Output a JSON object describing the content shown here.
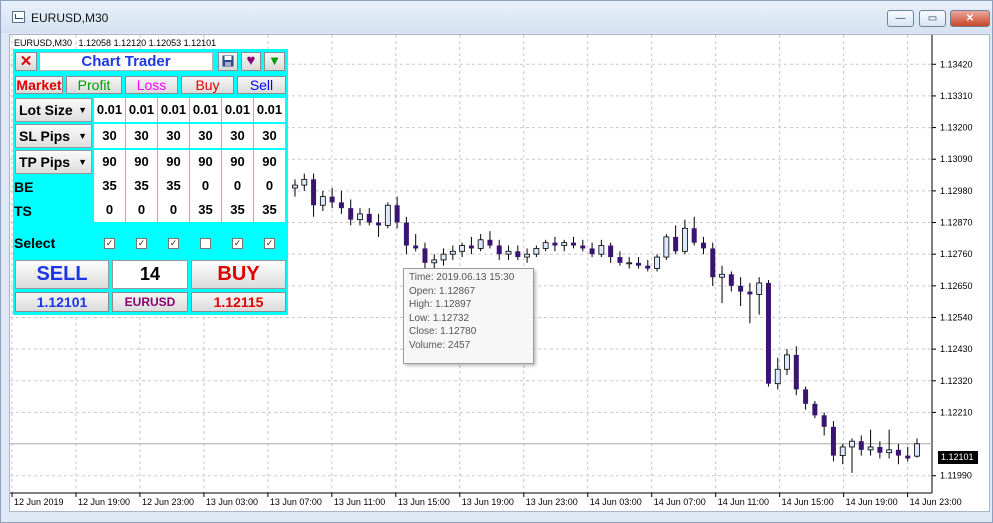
{
  "window": {
    "title": "EURUSD,M30",
    "minimize_icon": "minimize-icon",
    "restore_icon": "restore-icon",
    "close_icon": "close-icon"
  },
  "chart_header": {
    "symbol": "EURUSD,M30",
    "ohlc": "1.12058 1.12120 1.12053 1.12101"
  },
  "panel": {
    "close_label": "✕",
    "title": "Chart Trader",
    "save_icon": "floppy-disk-icon",
    "heart_icon": "heart-icon",
    "minimize_icon": "triangle-down-icon",
    "tabs": [
      {
        "label": "Market",
        "color": "#e00000"
      },
      {
        "label": "Profit",
        "color": "#00a000"
      },
      {
        "label": "Loss",
        "color": "#ff00ff"
      },
      {
        "label": "Buy",
        "color": "#e00000"
      },
      {
        "label": "Sell",
        "color": "#0000ff"
      }
    ],
    "rows": [
      {
        "label": "Lot Size",
        "dropdown": true,
        "values": [
          "0.01",
          "0.01",
          "0.01",
          "0.01",
          "0.01",
          "0.01"
        ]
      },
      {
        "label": "SL Pips",
        "dropdown": true,
        "values": [
          "30",
          "30",
          "30",
          "30",
          "30",
          "30"
        ]
      },
      {
        "label": "TP Pips",
        "dropdown": true,
        "values": [
          "90",
          "90",
          "90",
          "90",
          "90",
          "90"
        ]
      },
      {
        "label": "BE",
        "dropdown": false,
        "values": [
          "35",
          "35",
          "35",
          "0",
          "0",
          "0"
        ]
      },
      {
        "label": "TS",
        "dropdown": false,
        "values": [
          "0",
          "0",
          "0",
          "35",
          "35",
          "35"
        ]
      }
    ],
    "select_label": "Select",
    "select_checked": [
      true,
      true,
      true,
      false,
      true,
      true
    ],
    "sell_label": "SELL",
    "count": "14",
    "buy_label": "BUY",
    "bid": "1.12101",
    "symbol": "EURUSD",
    "ask": "1.12115"
  },
  "tooltip": {
    "time": "Time: 2019.06.13 15:30",
    "open": "Open: 1.12867",
    "high": "High: 1.12897",
    "low": "Low:  1.12732",
    "close": "Close: 1.12780",
    "volume": "Volume: 2457"
  },
  "current_price": "1.12101",
  "chart_data": {
    "type": "candlestick",
    "symbol": "EURUSD",
    "timeframe": "M30",
    "ylim": [
      1.1193,
      1.1348
    ],
    "y_ticks": [
      "1.13420",
      "1.13310",
      "1.13200",
      "1.13090",
      "1.12980",
      "1.12870",
      "1.12760",
      "1.12650",
      "1.12540",
      "1.12430",
      "1.12320",
      "1.12210",
      "1.11990"
    ],
    "x_ticks": [
      "12 Jun 2019",
      "12 Jun 19:00",
      "12 Jun 23:00",
      "13 Jun 03:00",
      "13 Jun 07:00",
      "13 Jun 11:00",
      "13 Jun 15:00",
      "13 Jun 19:00",
      "13 Jun 23:00",
      "14 Jun 03:00",
      "14 Jun 07:00",
      "14 Jun 11:00",
      "14 Jun 15:00",
      "14 Jun 19:00",
      "14 Jun 23:00"
    ],
    "grid": true,
    "bull_color": "#dce9ff",
    "bear_color": "#3a1473",
    "candles": [
      [
        1.1299,
        1.1302,
        1.1296,
        1.13
      ],
      [
        1.13,
        1.1304,
        1.1298,
        1.1302
      ],
      [
        1.1302,
        1.1304,
        1.1289,
        1.1293
      ],
      [
        1.1293,
        1.1298,
        1.1291,
        1.1296
      ],
      [
        1.1296,
        1.1299,
        1.1292,
        1.1294
      ],
      [
        1.1294,
        1.1298,
        1.129,
        1.1292
      ],
      [
        1.1292,
        1.1295,
        1.1286,
        1.1288
      ],
      [
        1.1288,
        1.1292,
        1.1286,
        1.129
      ],
      [
        1.129,
        1.1292,
        1.1286,
        1.1287
      ],
      [
        1.1287,
        1.129,
        1.1282,
        1.1286
      ],
      [
        1.1286,
        1.1294,
        1.1285,
        1.1293
      ],
      [
        1.1293,
        1.1296,
        1.1285,
        1.1287
      ],
      [
        1.1287,
        1.1289,
        1.1276,
        1.1279
      ],
      [
        1.1279,
        1.1283,
        1.1277,
        1.1278
      ],
      [
        1.1278,
        1.128,
        1.127,
        1.1273
      ],
      [
        1.1273,
        1.1276,
        1.127,
        1.1274
      ],
      [
        1.1274,
        1.1278,
        1.1272,
        1.1276
      ],
      [
        1.1276,
        1.1279,
        1.1274,
        1.1277
      ],
      [
        1.1277,
        1.128,
        1.1275,
        1.1279
      ],
      [
        1.1279,
        1.1282,
        1.1276,
        1.1278
      ],
      [
        1.1278,
        1.1283,
        1.1277,
        1.1281
      ],
      [
        1.1281,
        1.1284,
        1.1278,
        1.1279
      ],
      [
        1.1279,
        1.1281,
        1.1274,
        1.1276
      ],
      [
        1.1276,
        1.1279,
        1.1274,
        1.1277
      ],
      [
        1.1277,
        1.1279,
        1.1274,
        1.1275
      ],
      [
        1.1275,
        1.1278,
        1.1273,
        1.1276
      ],
      [
        1.1276,
        1.1279,
        1.1275,
        1.1278
      ],
      [
        1.1278,
        1.1281,
        1.1277,
        1.128
      ],
      [
        1.128,
        1.1282,
        1.1277,
        1.1279
      ],
      [
        1.1279,
        1.1281,
        1.1277,
        1.128
      ],
      [
        1.128,
        1.1282,
        1.1278,
        1.1279
      ],
      [
        1.1279,
        1.1281,
        1.1277,
        1.1278
      ],
      [
        1.1278,
        1.128,
        1.1275,
        1.1276
      ],
      [
        1.1276,
        1.1281,
        1.1275,
        1.1279
      ],
      [
        1.1279,
        1.128,
        1.1273,
        1.1275
      ],
      [
        1.1275,
        1.1277,
        1.1272,
        1.1273
      ],
      [
        1.1273,
        1.1275,
        1.1271,
        1.1273
      ],
      [
        1.1273,
        1.1275,
        1.1271,
        1.1272
      ],
      [
        1.1272,
        1.1274,
        1.127,
        1.1271
      ],
      [
        1.1271,
        1.1276,
        1.127,
        1.1275
      ],
      [
        1.1275,
        1.1283,
        1.1274,
        1.1282
      ],
      [
        1.1282,
        1.1286,
        1.1276,
        1.1277
      ],
      [
        1.1277,
        1.1288,
        1.1276,
        1.1285
      ],
      [
        1.1285,
        1.1289,
        1.1279,
        1.128
      ],
      [
        1.128,
        1.1282,
        1.1276,
        1.1278
      ],
      [
        1.1278,
        1.128,
        1.1265,
        1.1268
      ],
      [
        1.1268,
        1.1272,
        1.1259,
        1.1269
      ],
      [
        1.1269,
        1.127,
        1.1263,
        1.1265
      ],
      [
        1.1265,
        1.1268,
        1.1258,
        1.1263
      ],
      [
        1.1263,
        1.1266,
        1.1252,
        1.1262
      ],
      [
        1.1262,
        1.1268,
        1.1255,
        1.1266
      ],
      [
        1.1266,
        1.1267,
        1.123,
        1.1231
      ],
      [
        1.1231,
        1.124,
        1.1229,
        1.1236
      ],
      [
        1.1236,
        1.1243,
        1.1234,
        1.1241
      ],
      [
        1.1241,
        1.1244,
        1.1227,
        1.1229
      ],
      [
        1.1229,
        1.123,
        1.1222,
        1.1224
      ],
      [
        1.1224,
        1.1225,
        1.1219,
        1.122
      ],
      [
        1.122,
        1.1221,
        1.1213,
        1.1216
      ],
      [
        1.1216,
        1.1218,
        1.1204,
        1.1206
      ],
      [
        1.1206,
        1.121,
        1.1203,
        1.1209
      ],
      [
        1.1209,
        1.1212,
        1.12,
        1.1211
      ],
      [
        1.1211,
        1.1213,
        1.1206,
        1.1208
      ],
      [
        1.1208,
        1.1215,
        1.1206,
        1.1209
      ],
      [
        1.1209,
        1.1211,
        1.1205,
        1.1207
      ],
      [
        1.1207,
        1.1215,
        1.1205,
        1.1208
      ],
      [
        1.1208,
        1.121,
        1.1203,
        1.1206
      ],
      [
        1.1206,
        1.1209,
        1.1204,
        1.1205
      ],
      [
        1.12058,
        1.1212,
        1.12053,
        1.12101
      ]
    ]
  }
}
